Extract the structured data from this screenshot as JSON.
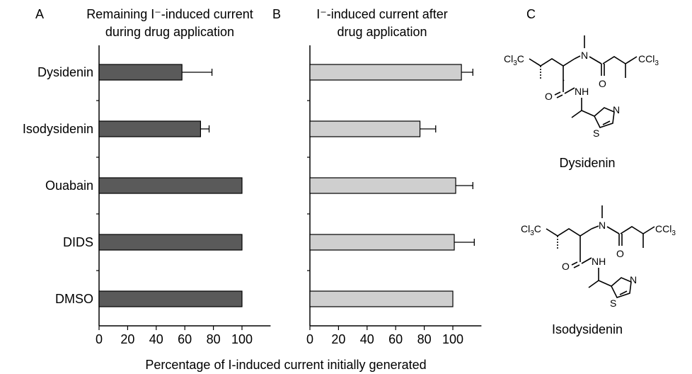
{
  "figure": {
    "xlabel": "Percentage of I-induced current initially generated",
    "colors": {
      "panel_a_bar": "#5a5a5a",
      "panel_b_bar": "#cfcfcf",
      "axis": "#000000"
    }
  },
  "chart_data": [
    {
      "type": "bar",
      "orientation": "horizontal",
      "panel_letter": "A",
      "title_lines": [
        "Remaining I⁻-induced current",
        "during drug application"
      ],
      "categories": [
        "Dysidenin",
        "Isodysidenin",
        "Ouabain",
        "DIDS",
        "DMSO"
      ],
      "values": [
        58,
        71,
        100,
        100,
        100
      ],
      "errors": [
        21,
        6,
        0,
        0,
        0
      ],
      "xlim": [
        0,
        120
      ],
      "xticks": [
        0,
        20,
        40,
        60,
        80,
        100
      ],
      "xlabel": "Percentage of I-induced current initially generated",
      "color": "#5a5a5a"
    },
    {
      "type": "bar",
      "orientation": "horizontal",
      "panel_letter": "B",
      "title_lines": [
        "I⁻-induced current after",
        "drug application"
      ],
      "categories": [
        "Dysidenin",
        "Isodysidenin",
        "Ouabain",
        "DIDS",
        "DMSO"
      ],
      "values": [
        106,
        77,
        102,
        101,
        100
      ],
      "errors": [
        8,
        11,
        12,
        14,
        0
      ],
      "xlim": [
        0,
        120
      ],
      "xticks": [
        0,
        20,
        40,
        60,
        80,
        100
      ],
      "xlabel": "Percentage of I-induced current initially generated",
      "color": "#cfcfcf"
    }
  ],
  "panel_c": {
    "letter": "C",
    "compounds": [
      {
        "name": "Dysidenin"
      },
      {
        "name": "Isodysidenin"
      }
    ],
    "atoms": {
      "cl3c": "Cl3C",
      "ccl3": "CCl3",
      "n": "N",
      "o": "O",
      "nh": "NH",
      "s": "S"
    }
  }
}
